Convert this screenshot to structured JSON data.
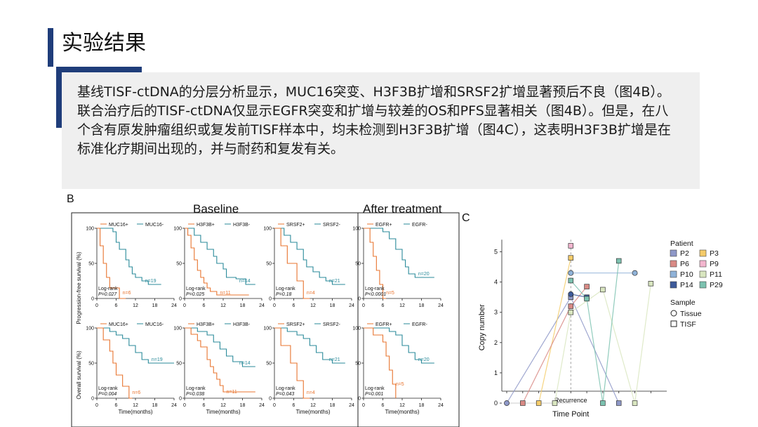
{
  "page": {
    "title": "实验结果",
    "paragraph": "基线TISF-ctDNA的分层分析显示，MUC16突变、H3F3B扩增和SRSF2扩增显著预后不良（图4B）。联合治疗后的TISF-ctDNA仅显示EGFR突变和扩增与较差的OS和PFS显著相关（图4B）。但是，在八个含有原发肿瘤组织或复发前TISF样本中，均未检测到H3F3B扩增（图4C），这表明H3F3B扩增是在标准化疗期间出现的，并与耐药和复发有关。",
    "colors": {
      "accent": "#1f3d7a",
      "text_box_bg": "#efefef"
    }
  },
  "figure_b": {
    "panel_label": "B",
    "group_baseline": "Baseline",
    "group_after": "After treatment",
    "pfs_ylabel": "Progression-free survival (%)",
    "os_ylabel": "Overall survival (%)",
    "xlabel": "Time(months)",
    "logrank": "Log-rank",
    "x_ticks": [
      "0",
      "6",
      "12",
      "18",
      "24"
    ],
    "y_ticks": [
      "0",
      "50",
      "100"
    ],
    "colors": {
      "positive": "#e8742f",
      "negative": "#2a8a9a"
    },
    "panels": [
      {
        "row": "pfs",
        "pos_label": "MUC16+",
        "neg_label": "MUC16-",
        "n_pos": "n=6",
        "n_neg": "n=19",
        "p": "P=0.027",
        "pos_curve": [
          [
            0,
            100
          ],
          [
            1,
            75
          ],
          [
            2,
            50
          ],
          [
            3,
            30
          ],
          [
            4,
            15
          ],
          [
            6,
            15
          ],
          [
            7,
            0
          ],
          [
            9,
            0
          ]
        ],
        "neg_curve": [
          [
            0,
            100
          ],
          [
            5,
            95
          ],
          [
            6,
            80
          ],
          [
            7,
            70
          ],
          [
            9,
            55
          ],
          [
            10,
            45
          ],
          [
            11,
            35
          ],
          [
            12,
            30
          ],
          [
            14,
            25
          ],
          [
            16,
            20
          ],
          [
            20,
            20
          ]
        ]
      },
      {
        "row": "pfs",
        "pos_label": "H3F3B+",
        "neg_label": "H3F3B-",
        "n_pos": "n=11",
        "n_neg": "n=14",
        "p": "P=0.025",
        "pos_curve": [
          [
            0,
            100
          ],
          [
            1,
            90
          ],
          [
            2,
            72
          ],
          [
            3,
            55
          ],
          [
            4,
            40
          ],
          [
            5,
            30
          ],
          [
            6,
            22
          ],
          [
            7,
            15
          ],
          [
            8,
            10
          ],
          [
            10,
            5
          ],
          [
            20,
            5
          ]
        ],
        "neg_curve": [
          [
            0,
            100
          ],
          [
            3,
            90
          ],
          [
            5,
            80
          ],
          [
            7,
            70
          ],
          [
            9,
            60
          ],
          [
            10,
            50
          ],
          [
            12,
            42
          ],
          [
            13,
            30
          ],
          [
            16,
            28
          ],
          [
            19,
            20
          ],
          [
            22,
            20
          ]
        ]
      },
      {
        "row": "pfs",
        "pos_label": "SRSF2+",
        "neg_label": "SRSF2-",
        "n_pos": "n=4",
        "n_neg": "n=21",
        "p": "P=0.18",
        "pos_curve": [
          [
            0,
            100
          ],
          [
            2,
            75
          ],
          [
            4,
            50
          ],
          [
            7,
            25
          ],
          [
            9,
            0
          ],
          [
            11,
            0
          ]
        ],
        "neg_curve": [
          [
            0,
            100
          ],
          [
            3,
            90
          ],
          [
            5,
            80
          ],
          [
            7,
            70
          ],
          [
            9,
            55
          ],
          [
            10,
            45
          ],
          [
            12,
            38
          ],
          [
            14,
            30
          ],
          [
            16,
            25
          ],
          [
            18,
            20
          ],
          [
            22,
            20
          ]
        ]
      },
      {
        "row": "pfs",
        "pos_label": "EGFR+",
        "neg_label": "EGFR-",
        "n_pos": "n=5",
        "n_neg": "n=20",
        "p": "P<0.0001",
        "pos_curve": [
          [
            0,
            100
          ],
          [
            2,
            80
          ],
          [
            3,
            60
          ],
          [
            4,
            40
          ],
          [
            5,
            20
          ],
          [
            6,
            0
          ],
          [
            7,
            0
          ]
        ],
        "neg_curve": [
          [
            0,
            100
          ],
          [
            6,
            95
          ],
          [
            8,
            85
          ],
          [
            10,
            70
          ],
          [
            12,
            55
          ],
          [
            13,
            45
          ],
          [
            14,
            35
          ],
          [
            16,
            30
          ],
          [
            18,
            30
          ],
          [
            22,
            30
          ]
        ]
      },
      {
        "row": "os",
        "pos_label": "MUC16+",
        "neg_label": "MUC16-",
        "n_pos": "n=6",
        "n_neg": "n=19",
        "p": "P=0.004",
        "pos_curve": [
          [
            0,
            100
          ],
          [
            2,
            83
          ],
          [
            4,
            67
          ],
          [
            5,
            50
          ],
          [
            6,
            33
          ],
          [
            8,
            17
          ],
          [
            10,
            0
          ],
          [
            11,
            0
          ]
        ],
        "neg_curve": [
          [
            0,
            100
          ],
          [
            4,
            95
          ],
          [
            6,
            90
          ],
          [
            8,
            85
          ],
          [
            10,
            75
          ],
          [
            12,
            65
          ],
          [
            14,
            55
          ],
          [
            16,
            50
          ],
          [
            20,
            50
          ],
          [
            24,
            50
          ]
        ]
      },
      {
        "row": "os",
        "pos_label": "H3F3B+",
        "neg_label": "H3F3B-",
        "n_pos": "n=11",
        "n_neg": "n=14",
        "p": "P=0.038",
        "pos_curve": [
          [
            0,
            100
          ],
          [
            2,
            91
          ],
          [
            4,
            82
          ],
          [
            5,
            73
          ],
          [
            7,
            55
          ],
          [
            8,
            45
          ],
          [
            9,
            36
          ],
          [
            10,
            27
          ],
          [
            11,
            18
          ],
          [
            12,
            9
          ],
          [
            22,
            9
          ]
        ],
        "neg_curve": [
          [
            0,
            100
          ],
          [
            4,
            95
          ],
          [
            7,
            90
          ],
          [
            9,
            80
          ],
          [
            11,
            70
          ],
          [
            13,
            60
          ],
          [
            15,
            52
          ],
          [
            18,
            45
          ],
          [
            22,
            45
          ]
        ]
      },
      {
        "row": "os",
        "pos_label": "SRSF2+",
        "neg_label": "SRSF2-",
        "n_pos": "n=4",
        "n_neg": "n=21",
        "p": "P=0.043",
        "pos_curve": [
          [
            0,
            100
          ],
          [
            2,
            75
          ],
          [
            5,
            50
          ],
          [
            7,
            25
          ],
          [
            9,
            0
          ],
          [
            11,
            0
          ]
        ],
        "neg_curve": [
          [
            0,
            100
          ],
          [
            4,
            95
          ],
          [
            7,
            90
          ],
          [
            9,
            85
          ],
          [
            11,
            75
          ],
          [
            13,
            65
          ],
          [
            15,
            55
          ],
          [
            18,
            50
          ],
          [
            22,
            50
          ]
        ]
      },
      {
        "row": "os",
        "pos_label": "EGFR+",
        "neg_label": "EGFR-",
        "n_pos": "n=5",
        "n_neg": "n=20",
        "p": "P=0.001",
        "pos_curve": [
          [
            0,
            100
          ],
          [
            3,
            90
          ],
          [
            6,
            80
          ],
          [
            7,
            60
          ],
          [
            8,
            40
          ],
          [
            9,
            20
          ],
          [
            10,
            0
          ]
        ],
        "neg_curve": [
          [
            0,
            100
          ],
          [
            8,
            95
          ],
          [
            10,
            90
          ],
          [
            12,
            75
          ],
          [
            14,
            65
          ],
          [
            16,
            55
          ],
          [
            18,
            50
          ],
          [
            22,
            50
          ]
        ]
      }
    ]
  },
  "chart_data": {
    "type": "scatter",
    "panel_label": "C",
    "xlabel": "Time Point",
    "ylabel": "Copy number",
    "x_tick_label": "Recurrence",
    "ylim": [
      0,
      5.5
    ],
    "y_ticks": [
      "0",
      "1",
      "2",
      "3",
      "4",
      "5"
    ],
    "legend_patient_title": "Patient",
    "legend_sample_title": "Sample",
    "legend_placement": "right",
    "sample_types": [
      {
        "label": "Tissue",
        "shape": "circle"
      },
      {
        "label": "TISF",
        "shape": "square"
      }
    ],
    "series": [
      {
        "name": "P2",
        "color": "#8e98c8",
        "points": [
          [
            1,
            0,
            "circle"
          ],
          [
            5,
            3.5,
            "square"
          ],
          [
            8,
            0,
            "square"
          ]
        ]
      },
      {
        "name": "P3",
        "color": "#f5cc6a",
        "points": [
          [
            3,
            0,
            "square"
          ],
          [
            5,
            4.8,
            "square"
          ]
        ]
      },
      {
        "name": "P6",
        "color": "#d98a85",
        "points": [
          [
            2,
            0,
            "square"
          ],
          [
            5,
            3.2,
            "square"
          ],
          [
            6,
            3.85,
            "square"
          ]
        ]
      },
      {
        "name": "P9",
        "color": "#f3b6cf",
        "points": [
          [
            5,
            5.2,
            "square"
          ]
        ]
      },
      {
        "name": "P10",
        "color": "#8fb2d8",
        "points": [
          [
            9,
            4.3,
            "circle"
          ],
          [
            5,
            4.3,
            "circle"
          ]
        ]
      },
      {
        "name": "P11",
        "color": "#d9e6c0",
        "points": [
          [
            4,
            0,
            "square"
          ],
          [
            5,
            3.0,
            "square"
          ],
          [
            7,
            3.75,
            "square"
          ],
          [
            9,
            0,
            "square"
          ],
          [
            10,
            3.95,
            "square"
          ]
        ]
      },
      {
        "name": "P14",
        "color": "#3d5a9a",
        "points": [
          [
            5,
            3.6,
            "circle"
          ],
          [
            6,
            3.5,
            "square"
          ]
        ]
      },
      {
        "name": "P29",
        "color": "#7cc2b0",
        "points": [
          [
            5,
            4.05,
            "square"
          ],
          [
            6,
            3.45,
            "square"
          ],
          [
            7,
            0,
            "square"
          ],
          [
            8,
            4.7,
            "square"
          ]
        ]
      }
    ]
  }
}
